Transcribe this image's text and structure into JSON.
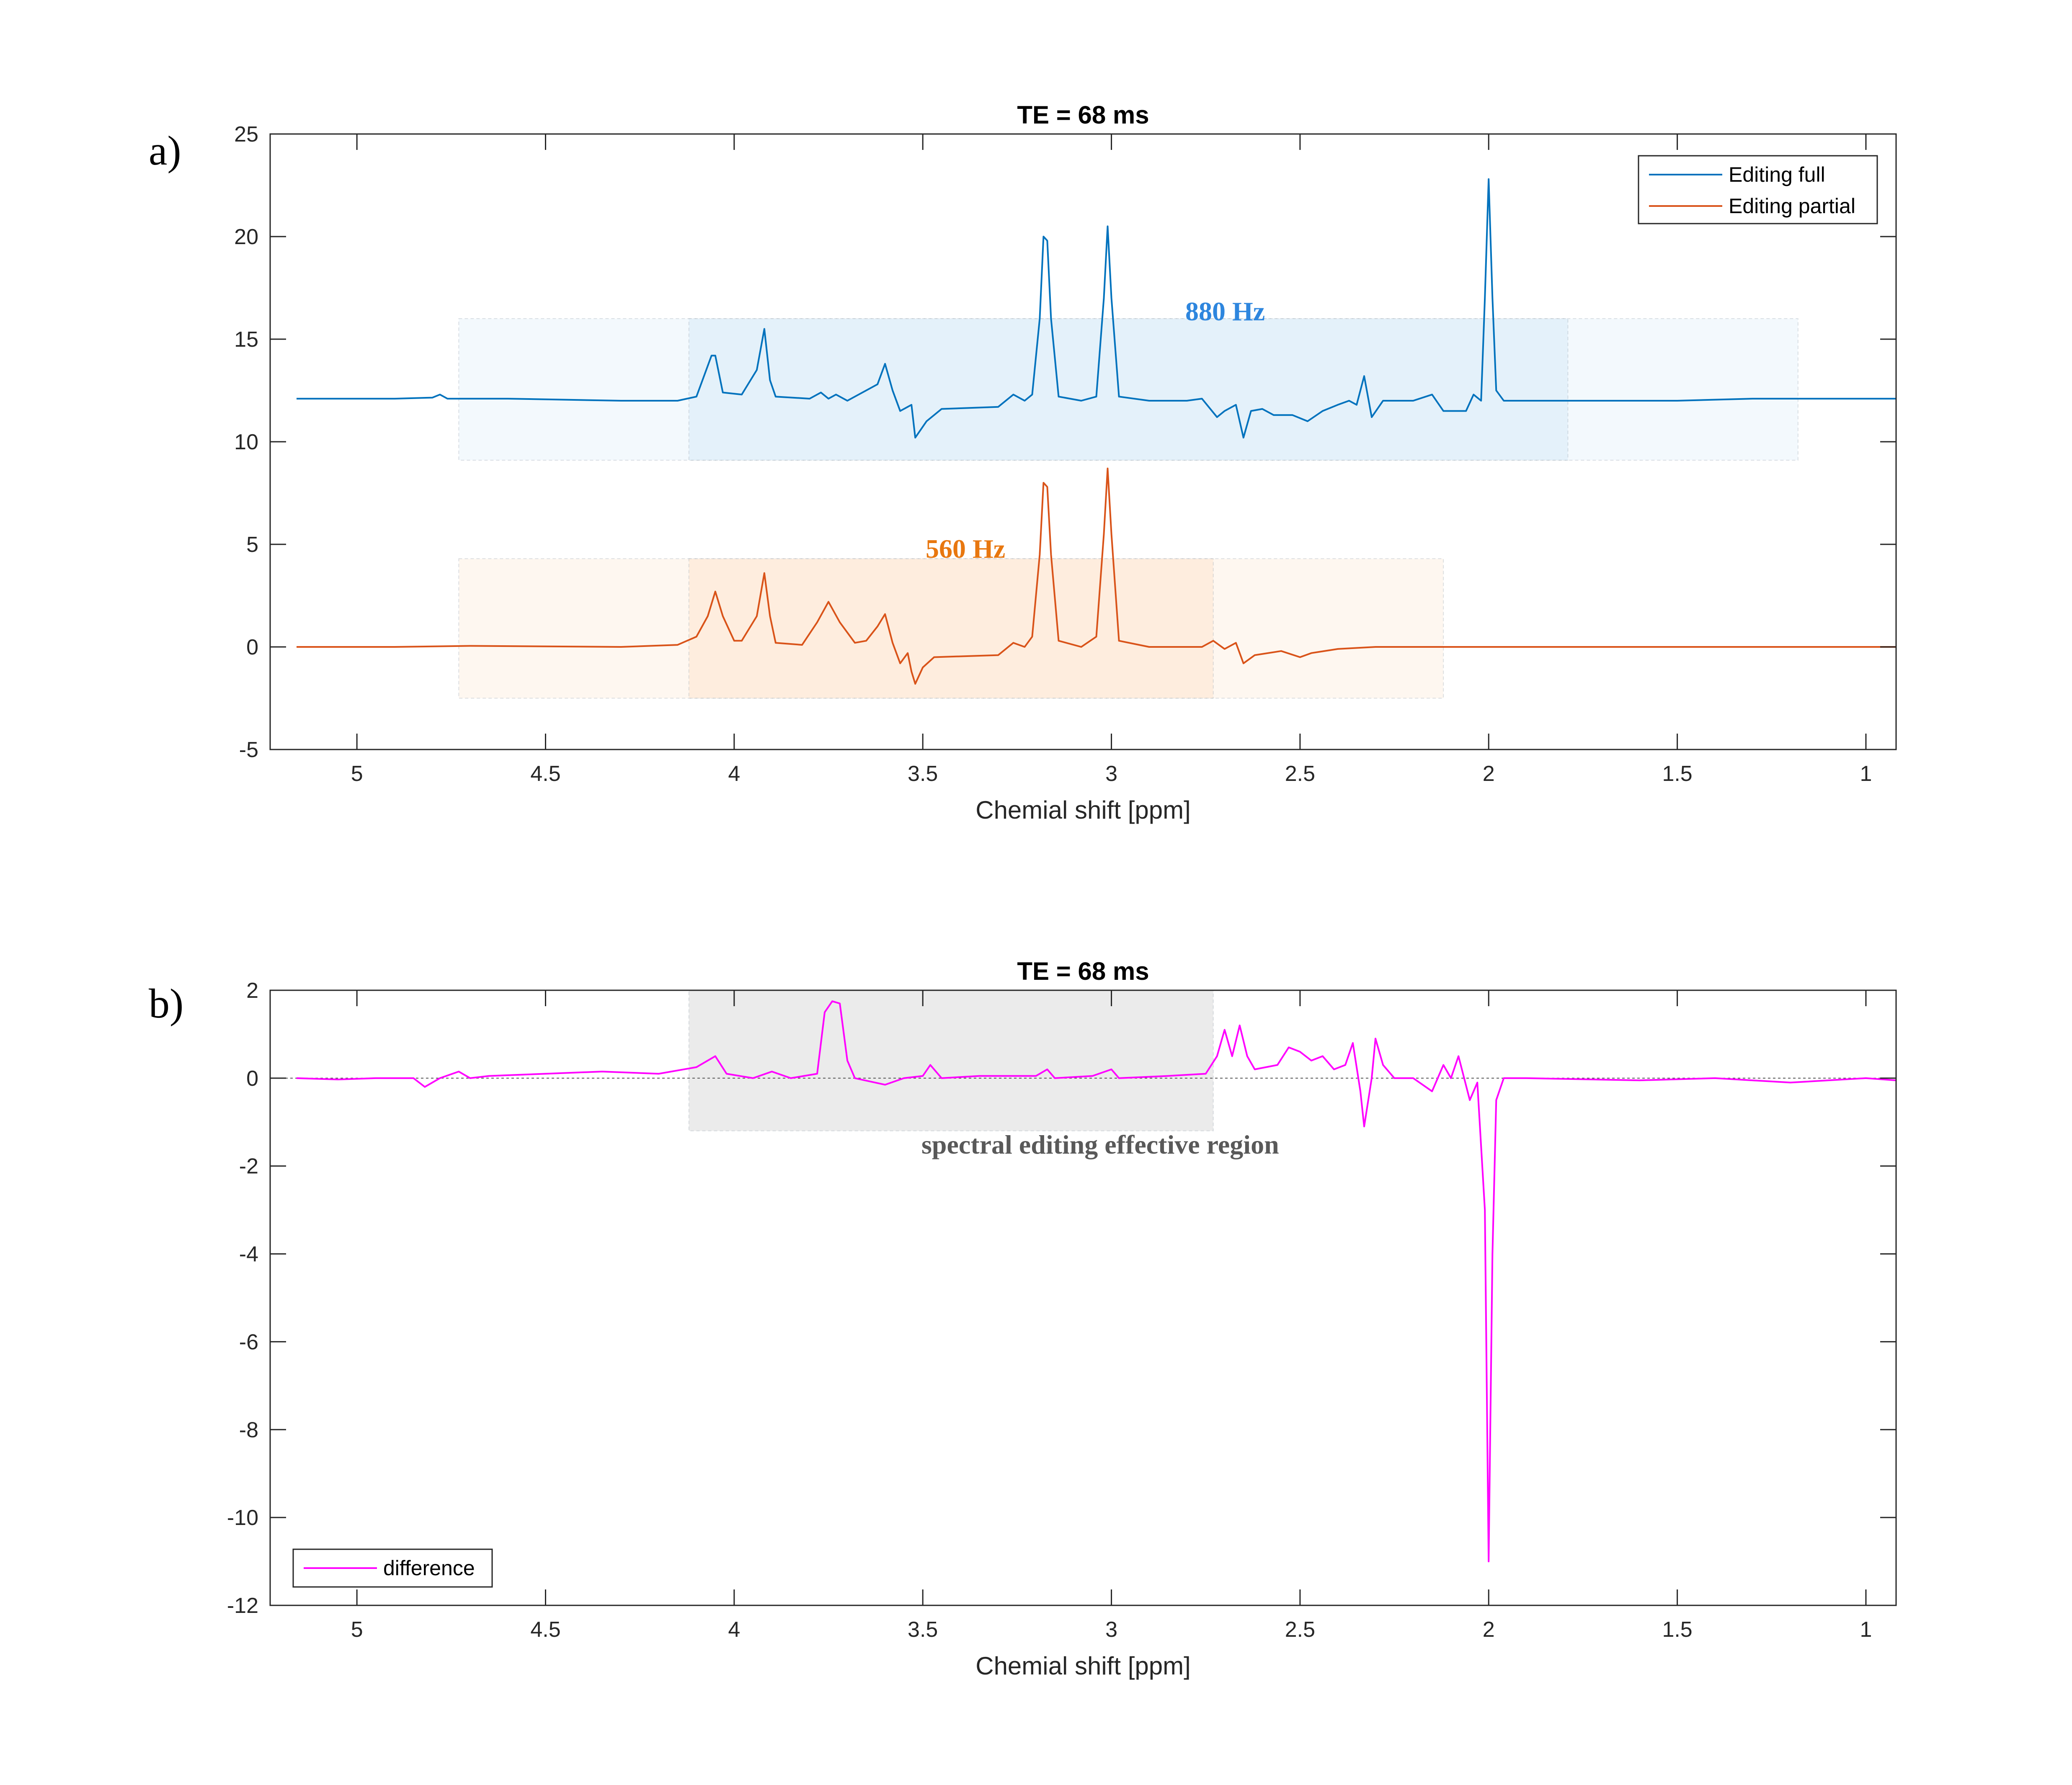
{
  "figure": {
    "panel_a_label": "a)",
    "panel_b_label": "b)"
  },
  "chart_data": [
    {
      "type": "line",
      "title": "TE = 68 ms",
      "xlabel": "Chemial shift [ppm]",
      "ylabel": "",
      "xlim": [
        5.23,
        0.92
      ],
      "ylim": [
        -5,
        25
      ],
      "x_reversed": true,
      "grid": false,
      "legend_position": "top-right",
      "xticks": [
        5,
        4.5,
        4,
        3.5,
        3,
        2.5,
        2,
        1.5,
        1
      ],
      "xtick_labels": [
        "5",
        "4.5",
        "4",
        "3.5",
        "3",
        "2.5",
        "2",
        "1.5",
        "1"
      ],
      "yticks": [
        -5,
        0,
        5,
        10,
        15,
        20,
        25
      ],
      "ytick_labels": [
        "-5",
        "0",
        "5",
        "10",
        "15",
        "20",
        "25"
      ],
      "series": [
        {
          "name": "Editing full",
          "color": "#0072BD",
          "points": [
            [
              5.16,
              12.1
            ],
            [
              4.9,
              12.1
            ],
            [
              4.8,
              12.15
            ],
            [
              4.78,
              12.3
            ],
            [
              4.76,
              12.1
            ],
            [
              4.6,
              12.1
            ],
            [
              4.3,
              12.0
            ],
            [
              4.15,
              12.0
            ],
            [
              4.1,
              12.2
            ],
            [
              4.06,
              14.2
            ],
            [
              4.05,
              14.2
            ],
            [
              4.03,
              12.4
            ],
            [
              3.98,
              12.3
            ],
            [
              3.94,
              13.5
            ],
            [
              3.92,
              15.5
            ],
            [
              3.905,
              13
            ],
            [
              3.89,
              12.2
            ],
            [
              3.8,
              12.1
            ],
            [
              3.77,
              12.4
            ],
            [
              3.75,
              12.1
            ],
            [
              3.73,
              12.3
            ],
            [
              3.7,
              12.0
            ],
            [
              3.62,
              12.8
            ],
            [
              3.6,
              13.8
            ],
            [
              3.58,
              12.5
            ],
            [
              3.56,
              11.5
            ],
            [
              3.53,
              11.8
            ],
            [
              3.52,
              10.2
            ],
            [
              3.49,
              11.0
            ],
            [
              3.45,
              11.6
            ],
            [
              3.3,
              11.7
            ],
            [
              3.26,
              12.3
            ],
            [
              3.23,
              12.0
            ],
            [
              3.21,
              12.3
            ],
            [
              3.19,
              16
            ],
            [
              3.18,
              20
            ],
            [
              3.17,
              19.8
            ],
            [
              3.16,
              16
            ],
            [
              3.14,
              12.2
            ],
            [
              3.08,
              12.0
            ],
            [
              3.04,
              12.2
            ],
            [
              3.02,
              17
            ],
            [
              3.01,
              20.5
            ],
            [
              3.0,
              17
            ],
            [
              2.98,
              12.2
            ],
            [
              2.9,
              12.0
            ],
            [
              2.8,
              12.0
            ],
            [
              2.76,
              12.1
            ],
            [
              2.72,
              11.2
            ],
            [
              2.7,
              11.5
            ],
            [
              2.67,
              11.8
            ],
            [
              2.65,
              10.2
            ],
            [
              2.63,
              11.5
            ],
            [
              2.6,
              11.6
            ],
            [
              2.57,
              11.3
            ],
            [
              2.52,
              11.3
            ],
            [
              2.48,
              11.0
            ],
            [
              2.44,
              11.5
            ],
            [
              2.4,
              11.8
            ],
            [
              2.37,
              12.0
            ],
            [
              2.35,
              11.8
            ],
            [
              2.33,
              13.2
            ],
            [
              2.31,
              11.2
            ],
            [
              2.28,
              12.0
            ],
            [
              2.2,
              12.0
            ],
            [
              2.15,
              12.3
            ],
            [
              2.12,
              11.5
            ],
            [
              2.06,
              11.5
            ],
            [
              2.04,
              12.3
            ],
            [
              2.02,
              12.0
            ],
            [
              2.01,
              17
            ],
            [
              2.0,
              22.8
            ],
            [
              1.99,
              17
            ],
            [
              1.98,
              12.5
            ],
            [
              1.96,
              12.0
            ],
            [
              1.8,
              12.0
            ],
            [
              1.5,
              12.0
            ],
            [
              1.3,
              12.1
            ],
            [
              1.1,
              12.1
            ],
            [
              0.92,
              12.1
            ]
          ]
        },
        {
          "name": "Editing partial",
          "color": "#D95319",
          "points": [
            [
              5.16,
              0.0
            ],
            [
              4.9,
              0.0
            ],
            [
              4.7,
              0.05
            ],
            [
              4.3,
              0.0
            ],
            [
              4.15,
              0.1
            ],
            [
              4.1,
              0.5
            ],
            [
              4.07,
              1.5
            ],
            [
              4.05,
              2.7
            ],
            [
              4.03,
              1.5
            ],
            [
              4.0,
              0.3
            ],
            [
              3.98,
              0.3
            ],
            [
              3.94,
              1.5
            ],
            [
              3.92,
              3.6
            ],
            [
              3.905,
              1.5
            ],
            [
              3.89,
              0.2
            ],
            [
              3.82,
              0.1
            ],
            [
              3.78,
              1.2
            ],
            [
              3.75,
              2.2
            ],
            [
              3.72,
              1.2
            ],
            [
              3.68,
              0.2
            ],
            [
              3.65,
              0.3
            ],
            [
              3.62,
              1.0
            ],
            [
              3.6,
              1.6
            ],
            [
              3.58,
              0.2
            ],
            [
              3.56,
              -0.8
            ],
            [
              3.54,
              -0.3
            ],
            [
              3.53,
              -1.2
            ],
            [
              3.52,
              -1.8
            ],
            [
              3.5,
              -1.0
            ],
            [
              3.47,
              -0.5
            ],
            [
              3.3,
              -0.4
            ],
            [
              3.26,
              0.2
            ],
            [
              3.23,
              0.0
            ],
            [
              3.21,
              0.5
            ],
            [
              3.19,
              4.5
            ],
            [
              3.18,
              8.0
            ],
            [
              3.17,
              7.8
            ],
            [
              3.16,
              4.5
            ],
            [
              3.14,
              0.3
            ],
            [
              3.08,
              0.0
            ],
            [
              3.04,
              0.5
            ],
            [
              3.02,
              5.5
            ],
            [
              3.01,
              8.7
            ],
            [
              3.0,
              5.5
            ],
            [
              2.98,
              0.3
            ],
            [
              2.9,
              0.0
            ],
            [
              2.76,
              0.0
            ],
            [
              2.73,
              0.3
            ],
            [
              2.7,
              -0.1
            ],
            [
              2.67,
              0.2
            ],
            [
              2.65,
              -0.8
            ],
            [
              2.62,
              -0.4
            ],
            [
              2.55,
              -0.2
            ],
            [
              2.5,
              -0.5
            ],
            [
              2.47,
              -0.3
            ],
            [
              2.4,
              -0.1
            ],
            [
              2.3,
              0.0
            ],
            [
              2.0,
              0.0
            ],
            [
              1.5,
              0.0
            ],
            [
              1.2,
              0.0
            ],
            [
              0.92,
              0.0
            ]
          ]
        }
      ],
      "annotations": [
        {
          "text": "880 Hz",
          "color": "#2E86DE"
        },
        {
          "text": "560 Hz",
          "color": "#E8770F"
        }
      ],
      "shaded_regions": [
        {
          "x": [
            4.73,
            1.18
          ],
          "y": [
            9.1,
            16.0
          ],
          "color": "#D6EAF8",
          "opacity": 0.3
        },
        {
          "x": [
            4.12,
            1.79
          ],
          "y": [
            9.1,
            16.0
          ],
          "color": "#D6EAF8",
          "opacity": 0.5
        },
        {
          "x": [
            4.73,
            2.12
          ],
          "y": [
            -2.5,
            4.3
          ],
          "color": "#FDE3CC",
          "opacity": 0.3
        },
        {
          "x": [
            4.12,
            2.73
          ],
          "y": [
            -2.5,
            4.3
          ],
          "color": "#FDE3CC",
          "opacity": 0.5
        }
      ]
    },
    {
      "type": "line",
      "title": "TE = 68 ms",
      "xlabel": "Chemial shift [ppm]",
      "ylabel": "",
      "xlim": [
        5.23,
        0.92
      ],
      "ylim": [
        -12,
        2
      ],
      "x_reversed": true,
      "grid": false,
      "legend_position": "bottom-left",
      "xticks": [
        5,
        4.5,
        4,
        3.5,
        3,
        2.5,
        2,
        1.5,
        1
      ],
      "xtick_labels": [
        "5",
        "4.5",
        "4",
        "3.5",
        "3",
        "2.5",
        "2",
        "1.5",
        "1"
      ],
      "yticks": [
        -12,
        -10,
        -8,
        -6,
        -4,
        -2,
        0,
        2
      ],
      "ytick_labels": [
        "-12",
        "-10",
        "-8",
        "-6",
        "-4",
        "-2",
        "0",
        "2"
      ],
      "zero_line": true,
      "series": [
        {
          "name": "difference",
          "color": "#FF00FF",
          "points": [
            [
              5.16,
              0.0
            ],
            [
              5.05,
              -0.03
            ],
            [
              4.95,
              0.0
            ],
            [
              4.85,
              0.0
            ],
            [
              4.82,
              -0.2
            ],
            [
              4.78,
              0.0
            ],
            [
              4.73,
              0.15
            ],
            [
              4.7,
              0.0
            ],
            [
              4.65,
              0.05
            ],
            [
              4.5,
              0.1
            ],
            [
              4.35,
              0.15
            ],
            [
              4.2,
              0.1
            ],
            [
              4.1,
              0.25
            ],
            [
              4.05,
              0.5
            ],
            [
              4.02,
              0.1
            ],
            [
              3.95,
              0.0
            ],
            [
              3.9,
              0.15
            ],
            [
              3.85,
              0.0
            ],
            [
              3.78,
              0.1
            ],
            [
              3.76,
              1.5
            ],
            [
              3.74,
              1.75
            ],
            [
              3.72,
              1.7
            ],
            [
              3.7,
              0.4
            ],
            [
              3.68,
              0.0
            ],
            [
              3.6,
              -0.15
            ],
            [
              3.55,
              0.0
            ],
            [
              3.5,
              0.05
            ],
            [
              3.48,
              0.3
            ],
            [
              3.45,
              0.0
            ],
            [
              3.35,
              0.05
            ],
            [
              3.2,
              0.05
            ],
            [
              3.17,
              0.2
            ],
            [
              3.15,
              0.0
            ],
            [
              3.05,
              0.05
            ],
            [
              3.0,
              0.2
            ],
            [
              2.98,
              0.0
            ],
            [
              2.85,
              0.05
            ],
            [
              2.75,
              0.1
            ],
            [
              2.72,
              0.5
            ],
            [
              2.7,
              1.1
            ],
            [
              2.68,
              0.5
            ],
            [
              2.66,
              1.2
            ],
            [
              2.64,
              0.5
            ],
            [
              2.62,
              0.2
            ],
            [
              2.56,
              0.3
            ],
            [
              2.53,
              0.7
            ],
            [
              2.5,
              0.6
            ],
            [
              2.47,
              0.4
            ],
            [
              2.44,
              0.5
            ],
            [
              2.41,
              0.2
            ],
            [
              2.38,
              0.3
            ],
            [
              2.36,
              0.8
            ],
            [
              2.34,
              -0.3
            ],
            [
              2.33,
              -1.1
            ],
            [
              2.31,
              0.0
            ],
            [
              2.3,
              0.9
            ],
            [
              2.28,
              0.3
            ],
            [
              2.25,
              0.0
            ],
            [
              2.2,
              0.0
            ],
            [
              2.15,
              -0.3
            ],
            [
              2.12,
              0.3
            ],
            [
              2.1,
              0.0
            ],
            [
              2.08,
              0.5
            ],
            [
              2.05,
              -0.5
            ],
            [
              2.03,
              -0.1
            ],
            [
              2.01,
              -3.0
            ],
            [
              2.0,
              -11.0
            ],
            [
              1.99,
              -4.0
            ],
            [
              1.98,
              -0.5
            ],
            [
              1.96,
              0.0
            ],
            [
              1.9,
              0.0
            ],
            [
              1.6,
              -0.05
            ],
            [
              1.4,
              0.0
            ],
            [
              1.2,
              -0.1
            ],
            [
              1.0,
              0.0
            ],
            [
              0.92,
              -0.05
            ]
          ]
        }
      ],
      "annotations": [
        {
          "text": "spectral editing effective region",
          "color": "#595959"
        }
      ],
      "shaded_regions": [
        {
          "x": [
            4.12,
            2.73
          ],
          "y": [
            -1.2,
            2.0
          ],
          "color": "#EBEBEB",
          "opacity": 1.0
        }
      ]
    }
  ]
}
